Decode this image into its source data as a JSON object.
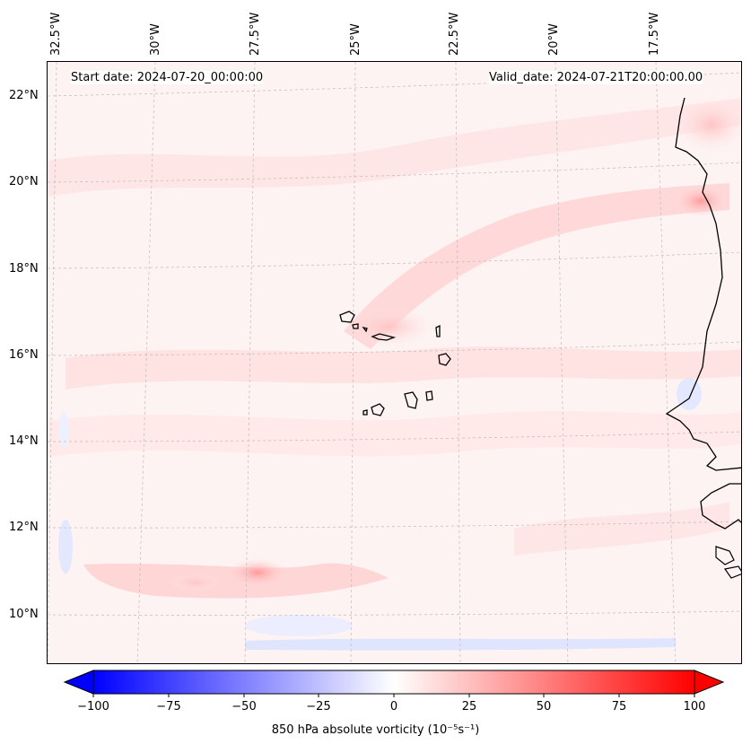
{
  "header": {
    "start_date": "Start date: 2024-07-20_00:00:00",
    "valid_date": "Valid_date: 2024-07-21T20:00:00.00"
  },
  "axes": {
    "lon_labels": [
      "32.5°W",
      "30°W",
      "27.5°W",
      "25°W",
      "22.5°W",
      "20°W",
      "17.5°W"
    ],
    "lat_labels": [
      "22°N",
      "20°N",
      "18°N",
      "16°N",
      "14°N",
      "12°N",
      "10°N"
    ]
  },
  "colorbar": {
    "label": "850 hPa absolute vorticity (10⁻⁵s⁻¹)",
    "ticks": [
      "−100",
      "−75",
      "−50",
      "−25",
      "0",
      "25",
      "50",
      "75",
      "100"
    ],
    "min_color": "#0000ff",
    "mid_color": "#ffffff",
    "max_color": "#ff0000"
  },
  "map": {
    "background_color": "#fdf3f3",
    "feature_colors": {
      "positive": "#ffd6d6",
      "strong_positive": "#ffb0b0",
      "negative": "#e4e8ff",
      "coastline": "#000000",
      "gridline": "#bbbbbb"
    }
  }
}
